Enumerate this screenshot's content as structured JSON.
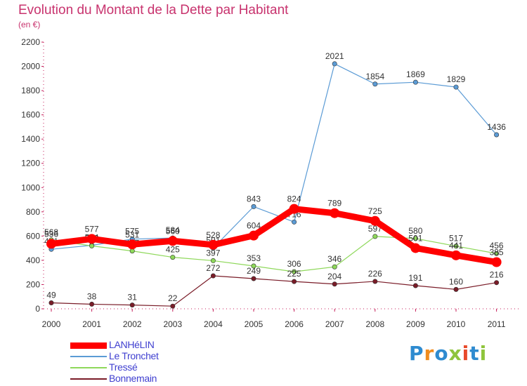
{
  "header": {
    "title": "Evolution du Montant de la Dette par Habitant",
    "subtitle": "(en €)"
  },
  "chart_data": {
    "type": "line",
    "title": "Evolution du Montant de la Dette par Habitant",
    "ylabel": "(en €)",
    "xlabel": "",
    "categories": [
      "2000",
      "2001",
      "2002",
      "2003",
      "2004",
      "2005",
      "2006",
      "2007",
      "2008",
      "2009",
      "2010",
      "2011"
    ],
    "ylim": [
      0,
      2200
    ],
    "yticks": [
      0,
      200,
      400,
      600,
      800,
      1000,
      1200,
      1400,
      1600,
      1800,
      2000,
      2200
    ],
    "ytick_labels": [
      "0",
      "200",
      "400",
      "600",
      "800",
      "1000",
      "1200",
      "1400",
      "1600",
      "1800",
      "2000",
      "2200"
    ],
    "grid": false,
    "legend_position": "bottom-left",
    "series": [
      {
        "name": "Le Tronchet",
        "color": "#5b9bd5",
        "values": [
          491,
          524,
          575,
          584,
          501,
          843,
          716,
          2021,
          1854,
          1869,
          1829,
          1436
        ],
        "labels": [
          "491",
          "524",
          "575",
          "584",
          "501",
          "843",
          "716",
          "2021",
          "1854",
          "1869",
          "1829",
          "1436"
        ]
      },
      {
        "name": "Tressé",
        "color": "#8ed85a",
        "values": [
          568,
          519,
          477,
          425,
          397,
          353,
          306,
          346,
          597,
          580,
          517,
          456
        ],
        "labels": [
          "568",
          "519",
          "477",
          "425",
          "397",
          "353",
          "306",
          "346",
          "597",
          "580",
          "517",
          "456"
        ]
      },
      {
        "name": "Bonnemain",
        "color": "#7a1c28",
        "values": [
          49,
          38,
          31,
          22,
          272,
          249,
          225,
          204,
          226,
          191,
          160,
          216
        ],
        "labels": [
          "49",
          "38",
          "31",
          "22",
          "272",
          "249",
          "225",
          "204",
          "226",
          "191",
          "160",
          "216"
        ]
      },
      {
        "name": "LANHéLIN",
        "color": "#ff0000",
        "values": [
          536,
          577,
          531,
          560,
          528,
          604,
          824,
          789,
          725,
          501,
          441,
          385
        ],
        "labels": [
          "536",
          "577",
          "531",
          "560",
          "528",
          "604",
          "824",
          "789",
          "725",
          "501",
          "441",
          "385"
        ]
      }
    ]
  },
  "legend": {
    "items": [
      {
        "label": "LANHéLIN",
        "color": "#ff0000"
      },
      {
        "label": "Le Tronchet",
        "color": "#5b9bd5"
      },
      {
        "label": "Tressé",
        "color": "#8ed85a"
      },
      {
        "label": "Bonnemain",
        "color": "#7a1c28"
      }
    ]
  },
  "logo": {
    "text": "Proxiti",
    "colors": [
      "#2e8bd0",
      "#f08c1e",
      "#2e8bd0",
      "#8fc43c",
      "#e84a2a",
      "#2e8bd0",
      "#8fc43c"
    ]
  }
}
